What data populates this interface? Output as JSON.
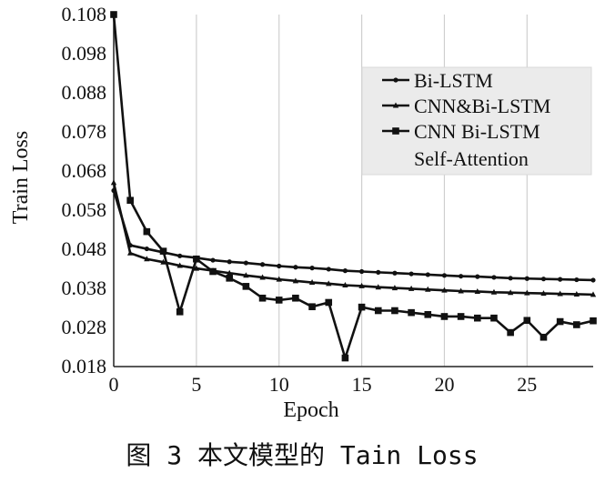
{
  "chart_data": {
    "type": "line",
    "ylabel": "Train Loss",
    "xlabel": "Epoch",
    "xlim": [
      0,
      29
    ],
    "ylim": [
      0.018,
      0.108
    ],
    "yticks": [
      "0.018",
      "0.028",
      "0.038",
      "0.048",
      "0.058",
      "0.068",
      "0.078",
      "0.088",
      "0.098",
      "0.108"
    ],
    "xticks": [
      "0",
      "5",
      "10",
      "15",
      "20",
      "25"
    ],
    "grid": "vertical",
    "legend_position": "top-right",
    "x": [
      0,
      1,
      2,
      3,
      4,
      5,
      6,
      7,
      8,
      9,
      10,
      11,
      12,
      13,
      14,
      15,
      16,
      17,
      18,
      19,
      20,
      21,
      22,
      23,
      24,
      25,
      26,
      27,
      28,
      29
    ],
    "series": [
      {
        "name": "Bi-LSTM",
        "marker": "circle",
        "values": [
          0.063,
          0.049,
          0.0481,
          0.0472,
          0.0463,
          0.0458,
          0.0452,
          0.0448,
          0.0445,
          0.0441,
          0.0437,
          0.0434,
          0.0432,
          0.0429,
          0.0425,
          0.0423,
          0.0421,
          0.0419,
          0.0417,
          0.0415,
          0.0413,
          0.0411,
          0.041,
          0.0408,
          0.0406,
          0.0405,
          0.0404,
          0.0403,
          0.0402,
          0.0401
        ]
      },
      {
        "name": "CNN&Bi-LSTM",
        "marker": "triangle",
        "values": [
          0.065,
          0.047,
          0.0455,
          0.0447,
          0.0438,
          0.0431,
          0.0425,
          0.0419,
          0.0413,
          0.0408,
          0.0403,
          0.0399,
          0.0395,
          0.0392,
          0.0388,
          0.0386,
          0.0383,
          0.0381,
          0.0379,
          0.0377,
          0.0375,
          0.0373,
          0.0372,
          0.037,
          0.0369,
          0.0368,
          0.0367,
          0.0366,
          0.0365,
          0.0364
        ]
      },
      {
        "name": "CNN Bi-LSTM Self-Attention",
        "marker": "square",
        "values": [
          0.108,
          0.0605,
          0.0525,
          0.0475,
          0.032,
          0.0455,
          0.0423,
          0.0406,
          0.0385,
          0.0355,
          0.035,
          0.0355,
          0.0333,
          0.0344,
          0.0202,
          0.0332,
          0.0323,
          0.0323,
          0.0318,
          0.0313,
          0.0308,
          0.0308,
          0.0304,
          0.0304,
          0.0267,
          0.0298,
          0.0255,
          0.0295,
          0.0287,
          0.0297
        ]
      }
    ]
  },
  "legend": {
    "items": [
      "Bi-LSTM",
      "CNN&Bi-LSTM",
      "CNN Bi-LSTM"
    ],
    "continuation": "Self-Attention"
  },
  "caption": "图 3  本文模型的 Tain Loss"
}
